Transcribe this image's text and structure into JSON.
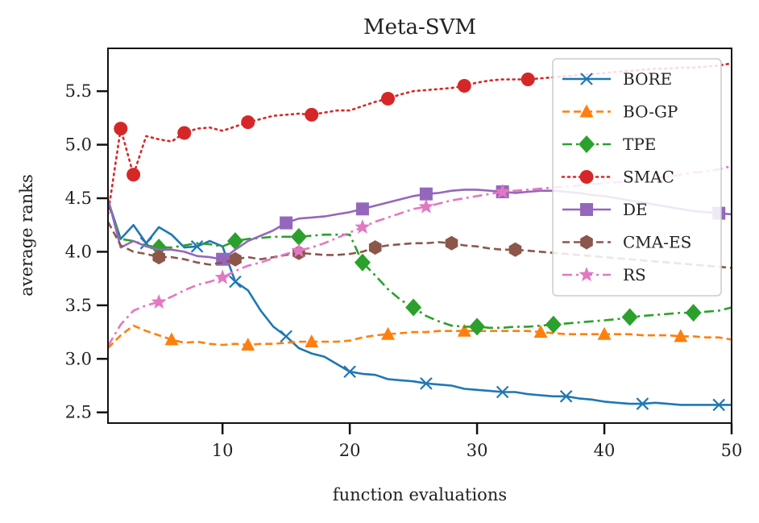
{
  "chart_data": {
    "type": "line",
    "title": "Meta-SVM",
    "xlabel": "function evaluations",
    "ylabel": "average ranks",
    "xlim": [
      1,
      50
    ],
    "ylim": [
      2.4,
      5.9
    ],
    "xticks": [
      10,
      20,
      30,
      40,
      50
    ],
    "yticks": [
      2.5,
      3.0,
      3.5,
      4.0,
      4.5,
      5.0,
      5.5
    ],
    "xtick_labels": [
      "10",
      "20",
      "30",
      "40",
      "50"
    ],
    "ytick_labels": [
      "2.5",
      "3.0",
      "3.5",
      "4.0",
      "4.5",
      "5.0",
      "5.5"
    ],
    "grid": false,
    "legend_position": "top-right",
    "series": [
      {
        "name": "BORE",
        "color": "#1f77b4",
        "dash": "solid",
        "marker": "x",
        "x": [
          1,
          2,
          3,
          4,
          5,
          6,
          7,
          8,
          9,
          10,
          11,
          12,
          13,
          14,
          15,
          16,
          17,
          18,
          19,
          20,
          21,
          22,
          23,
          24,
          25,
          26,
          27,
          28,
          29,
          30,
          31,
          32,
          33,
          34,
          35,
          36,
          37,
          38,
          39,
          40,
          41,
          42,
          43,
          44,
          45,
          46,
          47,
          48,
          49,
          50
        ],
        "y": [
          4.48,
          4.12,
          4.25,
          4.08,
          4.23,
          4.16,
          4.04,
          4.05,
          4.1,
          4.05,
          3.72,
          3.64,
          3.45,
          3.3,
          3.21,
          3.1,
          3.05,
          3.02,
          2.95,
          2.88,
          2.86,
          2.85,
          2.81,
          2.8,
          2.79,
          2.77,
          2.76,
          2.75,
          2.72,
          2.71,
          2.7,
          2.69,
          2.69,
          2.67,
          2.66,
          2.65,
          2.65,
          2.63,
          2.62,
          2.6,
          2.59,
          2.58,
          2.58,
          2.59,
          2.58,
          2.57,
          2.57,
          2.57,
          2.57,
          2.57
        ],
        "marker_x": [
          4,
          8,
          11,
          15,
          20,
          26,
          32,
          37,
          43,
          49
        ]
      },
      {
        "name": "BO-GP",
        "color": "#ff7f0e",
        "dash": "dashed",
        "marker": "triangle",
        "x": [
          1,
          2,
          3,
          4,
          5,
          6,
          7,
          8,
          9,
          10,
          11,
          12,
          13,
          14,
          15,
          16,
          17,
          18,
          19,
          20,
          21,
          22,
          23,
          24,
          25,
          26,
          27,
          28,
          29,
          30,
          31,
          32,
          33,
          34,
          35,
          36,
          37,
          38,
          39,
          40,
          41,
          42,
          43,
          44,
          45,
          46,
          47,
          48,
          49,
          50
        ],
        "y": [
          3.1,
          3.22,
          3.31,
          3.26,
          3.22,
          3.18,
          3.15,
          3.16,
          3.14,
          3.13,
          3.14,
          3.13,
          3.14,
          3.14,
          3.15,
          3.16,
          3.16,
          3.16,
          3.16,
          3.17,
          3.2,
          3.22,
          3.23,
          3.24,
          3.25,
          3.25,
          3.26,
          3.26,
          3.26,
          3.26,
          3.26,
          3.26,
          3.26,
          3.26,
          3.25,
          3.24,
          3.23,
          3.23,
          3.23,
          3.23,
          3.23,
          3.23,
          3.22,
          3.22,
          3.22,
          3.21,
          3.21,
          3.2,
          3.2,
          3.18
        ],
        "marker_x": [
          6,
          12,
          17,
          23,
          29,
          35,
          40,
          46
        ]
      },
      {
        "name": "TPE",
        "color": "#2ca02c",
        "dash": "dashdot",
        "marker": "diamond",
        "x": [
          1,
          2,
          3,
          4,
          5,
          6,
          7,
          8,
          9,
          10,
          11,
          12,
          13,
          14,
          15,
          16,
          17,
          18,
          19,
          20,
          21,
          22,
          23,
          24,
          25,
          26,
          27,
          28,
          29,
          30,
          31,
          32,
          33,
          34,
          35,
          36,
          37,
          38,
          39,
          40,
          41,
          42,
          43,
          44,
          45,
          46,
          47,
          48,
          49,
          50
        ],
        "y": [
          4.45,
          4.12,
          4.1,
          4.06,
          4.04,
          4.04,
          4.06,
          4.08,
          4.07,
          4.05,
          4.1,
          4.12,
          4.13,
          4.14,
          4.14,
          4.14,
          4.15,
          4.16,
          4.16,
          4.16,
          3.9,
          3.78,
          3.65,
          3.55,
          3.48,
          3.4,
          3.35,
          3.31,
          3.3,
          3.3,
          3.29,
          3.29,
          3.3,
          3.3,
          3.31,
          3.32,
          3.33,
          3.34,
          3.35,
          3.36,
          3.37,
          3.39,
          3.4,
          3.41,
          3.42,
          3.43,
          3.43,
          3.44,
          3.45,
          3.48
        ],
        "marker_x": [
          5,
          11,
          16,
          21,
          25,
          30,
          36,
          42,
          47
        ]
      },
      {
        "name": "SMAC",
        "color": "#d62728",
        "dash": "dotted",
        "marker": "circle",
        "x": [
          1,
          2,
          3,
          4,
          5,
          6,
          7,
          8,
          9,
          10,
          11,
          12,
          13,
          14,
          15,
          16,
          17,
          18,
          19,
          20,
          21,
          22,
          23,
          24,
          25,
          26,
          27,
          28,
          29,
          30,
          31,
          32,
          33,
          34,
          35,
          36,
          37,
          38,
          39,
          40,
          41,
          42,
          43,
          44,
          45,
          46,
          47,
          48,
          49,
          50
        ],
        "y": [
          4.35,
          5.15,
          4.72,
          5.08,
          5.05,
          5.03,
          5.11,
          5.15,
          5.16,
          5.13,
          5.17,
          5.21,
          5.24,
          5.27,
          5.28,
          5.29,
          5.28,
          5.3,
          5.32,
          5.32,
          5.36,
          5.4,
          5.43,
          5.47,
          5.5,
          5.51,
          5.52,
          5.53,
          5.55,
          5.58,
          5.6,
          5.61,
          5.61,
          5.61,
          5.62,
          5.63,
          5.64,
          5.65,
          5.66,
          5.67,
          5.68,
          5.69,
          5.7,
          5.71,
          5.71,
          5.72,
          5.72,
          5.73,
          5.74,
          5.76
        ],
        "marker_x": [
          2,
          3,
          7,
          12,
          17,
          23,
          29,
          34
        ]
      },
      {
        "name": "DE",
        "color": "#9467bd",
        "dash": "solid",
        "marker": "square",
        "x": [
          1,
          2,
          3,
          4,
          5,
          6,
          7,
          8,
          9,
          10,
          11,
          12,
          13,
          14,
          15,
          16,
          17,
          18,
          19,
          20,
          21,
          22,
          23,
          24,
          25,
          26,
          27,
          28,
          29,
          30,
          31,
          32,
          33,
          34,
          35,
          36,
          37,
          38,
          39,
          40,
          41,
          42,
          43,
          44,
          45,
          46,
          47,
          48,
          49,
          50
        ],
        "y": [
          4.5,
          4.04,
          4.1,
          4.05,
          4.02,
          4.02,
          4.0,
          3.96,
          3.95,
          3.93,
          4.02,
          4.1,
          4.15,
          4.2,
          4.27,
          4.31,
          4.32,
          4.33,
          4.35,
          4.37,
          4.4,
          4.43,
          4.46,
          4.49,
          4.52,
          4.54,
          4.55,
          4.57,
          4.58,
          4.58,
          4.57,
          4.56,
          4.55,
          4.56,
          4.57,
          4.57,
          4.56,
          4.55,
          4.53,
          4.52,
          4.5,
          4.48,
          4.46,
          4.44,
          4.42,
          4.4,
          4.38,
          4.37,
          4.36,
          4.35
        ],
        "marker_x": [
          10,
          15,
          21,
          26,
          32,
          49
        ]
      },
      {
        "name": "CMA-ES",
        "color": "#8c564b",
        "dash": "dashed",
        "marker": "hexagon",
        "x": [
          1,
          2,
          3,
          4,
          5,
          6,
          7,
          8,
          9,
          10,
          11,
          12,
          13,
          14,
          15,
          16,
          17,
          18,
          19,
          20,
          21,
          22,
          23,
          24,
          25,
          26,
          27,
          28,
          29,
          30,
          31,
          32,
          33,
          34,
          35,
          36,
          37,
          38,
          39,
          40,
          41,
          42,
          43,
          44,
          45,
          46,
          47,
          48,
          49,
          50
        ],
        "y": [
          4.28,
          4.06,
          4.0,
          3.98,
          3.95,
          3.95,
          3.93,
          3.9,
          3.88,
          3.9,
          3.93,
          3.95,
          3.93,
          3.95,
          3.97,
          3.99,
          3.98,
          3.97,
          3.97,
          3.98,
          4.0,
          4.04,
          4.06,
          4.07,
          4.08,
          4.08,
          4.09,
          4.08,
          4.06,
          4.05,
          4.03,
          4.02,
          4.02,
          4.01,
          4.0,
          3.99,
          3.98,
          3.97,
          3.96,
          3.95,
          3.94,
          3.93,
          3.92,
          3.91,
          3.9,
          3.89,
          3.88,
          3.87,
          3.86,
          3.85
        ],
        "marker_x": [
          5,
          11,
          16,
          22,
          28,
          33
        ]
      },
      {
        "name": "RS",
        "color": "#e377c2",
        "dash": "dashdot",
        "marker": "star",
        "x": [
          1,
          2,
          3,
          4,
          5,
          6,
          7,
          8,
          9,
          10,
          11,
          12,
          13,
          14,
          15,
          16,
          17,
          18,
          19,
          20,
          21,
          22,
          23,
          24,
          25,
          26,
          27,
          28,
          29,
          30,
          31,
          32,
          33,
          34,
          35,
          36,
          37,
          38,
          39,
          40,
          41,
          42,
          43,
          44,
          45,
          46,
          47,
          48,
          49,
          50
        ],
        "y": [
          3.12,
          3.32,
          3.45,
          3.5,
          3.53,
          3.58,
          3.64,
          3.69,
          3.72,
          3.76,
          3.82,
          3.87,
          3.9,
          3.94,
          3.98,
          4.01,
          4.04,
          4.08,
          4.13,
          4.18,
          4.23,
          4.28,
          4.32,
          4.36,
          4.4,
          4.42,
          4.45,
          4.48,
          4.5,
          4.52,
          4.54,
          4.56,
          4.57,
          4.58,
          4.59,
          4.6,
          4.61,
          4.62,
          4.63,
          4.64,
          4.65,
          4.66,
          4.68,
          4.69,
          4.7,
          4.72,
          4.74,
          4.75,
          4.77,
          4.8
        ],
        "marker_x": [
          5,
          10,
          16,
          21,
          26,
          32
        ]
      }
    ]
  }
}
